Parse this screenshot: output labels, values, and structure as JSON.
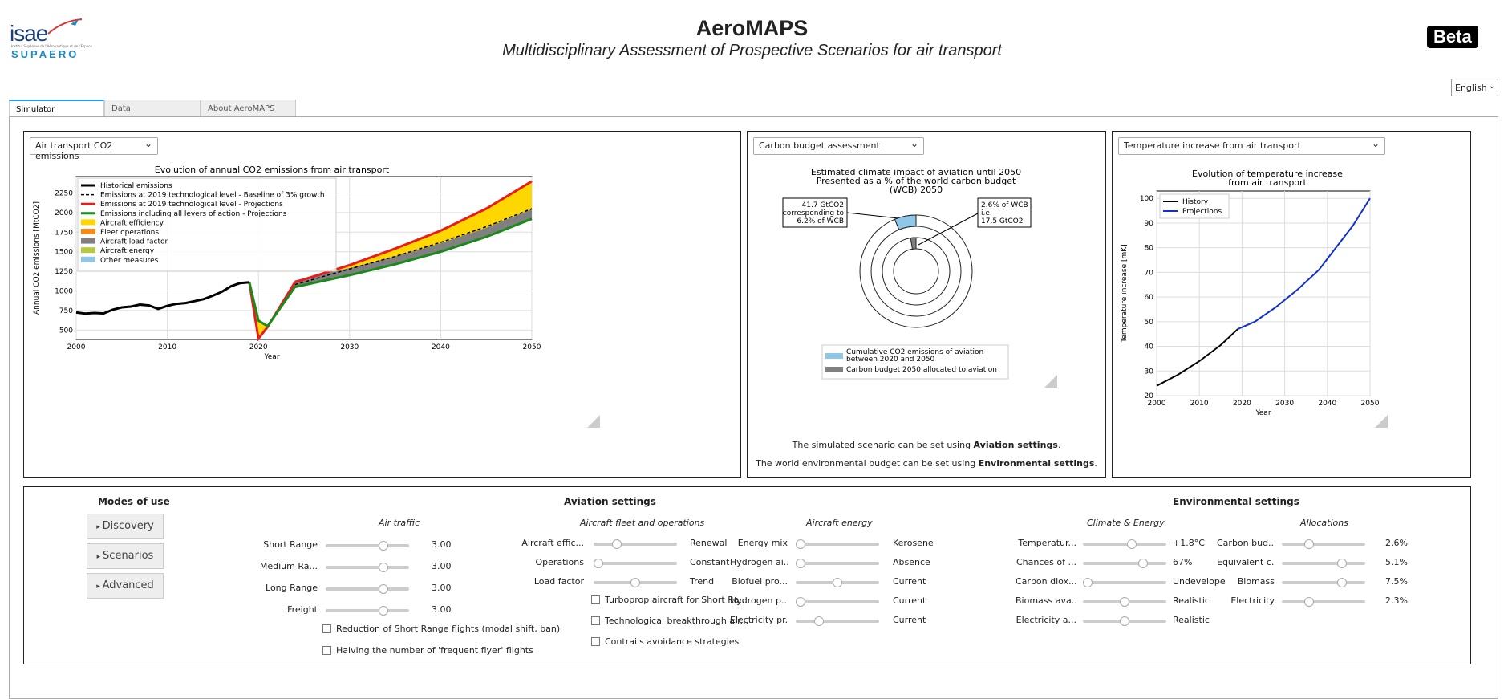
{
  "header": {
    "title": "AeroMAPS",
    "subtitle": "Multidisciplinary Assessment of Prospective Scenarios for air transport",
    "beta": "Beta",
    "language": "English",
    "logo_text": "isae",
    "logo_sub": "SUPAERO",
    "logo_tiny": "Institut Supérieur de l'Aéronautique et de l'Espace"
  },
  "tabs": [
    {
      "label": "Simulator"
    },
    {
      "label": "Data"
    },
    {
      "label": "About AeroMAPS"
    }
  ],
  "panel1": {
    "dropdown": "Air transport CO2 emissions"
  },
  "panel2": {
    "dropdown": "Carbon budget assessment",
    "note1": "The simulated scenario can be set using ",
    "note1b": "Aviation settings",
    "note2": "The world environmental budget can be set using ",
    "note2b": "Environmental settings",
    "dot": "."
  },
  "panel3": {
    "dropdown": "Temperature increase from air transport"
  },
  "chart_data": [
    {
      "type": "area",
      "title": "Evolution of annual CO2 emissions from air transport",
      "xlabel": "Year",
      "ylabel": "Annual CO2 emissions [MtCO2]",
      "xlim": [
        2000,
        2050
      ],
      "ylim": [
        380,
        2460
      ],
      "xticks": [
        "2000",
        "2010",
        "2020",
        "2030",
        "2040",
        "2050"
      ],
      "yticks": [
        "500",
        "750",
        "1000",
        "1250",
        "1500",
        "1750",
        "2000",
        "2250"
      ],
      "grid": true,
      "legend": "top-left",
      "legend_entries": [
        {
          "label": "Historical emissions",
          "color": "#000000",
          "kind": "line"
        },
        {
          "label": "Emissions at 2019 technological level - Baseline of 3% growth",
          "color": "#000000",
          "kind": "dash"
        },
        {
          "label": "Emissions at 2019 technological level - Projections",
          "color": "#e81c1c",
          "kind": "line"
        },
        {
          "label": "Emissions including all levers of action - Projections",
          "color": "#1a8a1a",
          "kind": "line"
        },
        {
          "label": "Aircraft efficiency",
          "color": "#ffd700",
          "kind": "patch"
        },
        {
          "label": "Fleet operations",
          "color": "#f28a1c",
          "kind": "patch"
        },
        {
          "label": "Aircraft load factor",
          "color": "#808080",
          "kind": "patch"
        },
        {
          "label": "Aircraft energy",
          "color": "#b5c93a",
          "kind": "patch"
        },
        {
          "label": "Other measures",
          "color": "#8fc7e8",
          "kind": "patch"
        }
      ],
      "series": [
        {
          "name": "Historical emissions",
          "x": [
            2000,
            2001,
            2002,
            2003,
            2004,
            2005,
            2006,
            2007,
            2008,
            2009,
            2010,
            2011,
            2012,
            2013,
            2014,
            2015,
            2016,
            2017,
            2018,
            2019
          ],
          "values": [
            725,
            710,
            718,
            712,
            760,
            790,
            800,
            825,
            815,
            770,
            810,
            835,
            845,
            870,
            895,
            940,
            990,
            1060,
            1100,
            1110
          ]
        },
        {
          "name": "Emissions at 2019 technological level - Baseline of 3% growth",
          "x": [
            2024,
            2030,
            2035,
            2040,
            2045,
            2050
          ],
          "values": [
            1080,
            1280,
            1440,
            1620,
            1820,
            2050
          ]
        },
        {
          "name": "Emissions at 2019 technological level - Projections",
          "x": [
            2019,
            2020,
            2021,
            2024,
            2030,
            2035,
            2040,
            2045,
            2050
          ],
          "values": [
            1110,
            390,
            540,
            1110,
            1330,
            1540,
            1770,
            2050,
            2400
          ]
        },
        {
          "name": "Emissions including all levers of action - Projections",
          "x": [
            2019,
            2020,
            2021,
            2024,
            2030,
            2035,
            2040,
            2045,
            2050
          ],
          "values": [
            1110,
            620,
            550,
            1050,
            1200,
            1340,
            1500,
            1690,
            1920
          ]
        }
      ]
    },
    {
      "type": "pie",
      "title": "Estimated climate impact of aviation until 2050\nPresented as a % of the world carbon budget\n(WCB) 2050",
      "annotations": [
        "41.7 GtCO2\ncorresponding to\n6.2% of WCB",
        "2.6% of WCB\ni.e.\n17.5 GtCO2"
      ],
      "series": [
        {
          "name": "Cumulative CO2 emissions of aviation between 2020 and 2050",
          "values": [
            6.2
          ]
        },
        {
          "name": "Carbon budget 2050 allocated to aviation",
          "values": [
            2.6
          ]
        }
      ],
      "legend_entries": [
        {
          "label": "Cumulative CO2 emissions of aviation\nbetween 2020 and 2050",
          "color": "#8fc7e8"
        },
        {
          "label": "Carbon budget 2050 allocated to aviation",
          "color": "#808080"
        }
      ]
    },
    {
      "type": "line",
      "title": "Evolution of temperature increase\nfrom air transport",
      "xlabel": "Year",
      "ylabel": "Temperature increase [mK]",
      "xlim": [
        2000,
        2050
      ],
      "ylim": [
        20,
        103
      ],
      "xticks": [
        "2000",
        "2010",
        "2020",
        "2030",
        "2040",
        "2050"
      ],
      "yticks": [
        "20",
        "30",
        "40",
        "50",
        "60",
        "70",
        "80",
        "90",
        "100"
      ],
      "grid": true,
      "legend": "top-left",
      "series": [
        {
          "name": "History",
          "color": "#000000",
          "x": [
            2000,
            2005,
            2010,
            2015,
            2019
          ],
          "values": [
            24,
            28.5,
            34,
            40.5,
            47
          ]
        },
        {
          "name": "Projections",
          "color": "#1030d0",
          "x": [
            2019,
            2023,
            2028,
            2033,
            2038,
            2042,
            2046,
            2050
          ],
          "values": [
            47,
            50,
            56,
            63,
            71,
            80,
            89,
            100
          ]
        }
      ]
    }
  ],
  "modes": {
    "heading": "Modes of use",
    "buttons": [
      "Discovery",
      "Scenarios",
      "Advanced"
    ]
  },
  "aviation": {
    "heading": "Aviation settings",
    "air_traffic": {
      "heading": "Air traffic",
      "rows": [
        {
          "label": "Short Range",
          "value": "3.00",
          "pos": 0.72
        },
        {
          "label": "Medium Ra...",
          "value": "3.00",
          "pos": 0.72
        },
        {
          "label": "Long Range",
          "value": "3.00",
          "pos": 0.72
        },
        {
          "label": "Freight",
          "value": "3.00",
          "pos": 0.72
        }
      ],
      "checks": [
        "Reduction of Short Range flights (modal shift, ban)",
        "Halving the number of 'frequent flyer' flights"
      ]
    },
    "fleet": {
      "heading": "Aircraft fleet and operations",
      "rows": [
        {
          "label": "Aircraft effic...",
          "value": "Renewal",
          "pos": 0.25
        },
        {
          "label": "Operations",
          "value": "Constant",
          "pos": 0.0
        },
        {
          "label": "Load factor",
          "value": "Trend",
          "pos": 0.5
        }
      ],
      "checks": [
        "Turboprop aircraft for Short Ra...",
        "Technological breakthrough air...",
        "Contrails avoidance strategies"
      ]
    },
    "energy": {
      "heading": "Aircraft energy",
      "rows": [
        {
          "label": "Energy mix",
          "value": "Kerosene",
          "pos": 0.0
        },
        {
          "label": "Hydrogen ai...",
          "value": "Absence",
          "pos": 0.0
        },
        {
          "label": "Biofuel pro...",
          "value": "Current",
          "pos": 0.5
        },
        {
          "label": "Hydrogen p...",
          "value": "Current",
          "pos": 0.0
        },
        {
          "label": "Electricity pr...",
          "value": "Current",
          "pos": 0.25
        }
      ]
    }
  },
  "environment": {
    "heading": "Environmental settings",
    "climate": {
      "heading": "Climate & Energy",
      "rows": [
        {
          "label": "Temperatur...",
          "value": "+1.8°C",
          "pos": 0.6
        },
        {
          "label": "Chances of ...",
          "value": "67%",
          "pos": 0.75
        },
        {
          "label": "Carbon diox...",
          "value": "Undevelope",
          "pos": 0.0
        },
        {
          "label": "Biomass ava...",
          "value": "Realistic",
          "pos": 0.5
        },
        {
          "label": "Electricity a...",
          "value": "Realistic",
          "pos": 0.5
        }
      ]
    },
    "alloc": {
      "heading": "Allocations",
      "rows": [
        {
          "label": "Carbon bud...",
          "value": "2.6%",
          "pos": 0.3
        },
        {
          "label": "Equivalent c...",
          "value": "5.1%",
          "pos": 0.75
        },
        {
          "label": "Biomass",
          "value": "7.5%",
          "pos": 0.75
        },
        {
          "label": "Electricity",
          "value": "2.3%",
          "pos": 0.3
        }
      ]
    }
  }
}
